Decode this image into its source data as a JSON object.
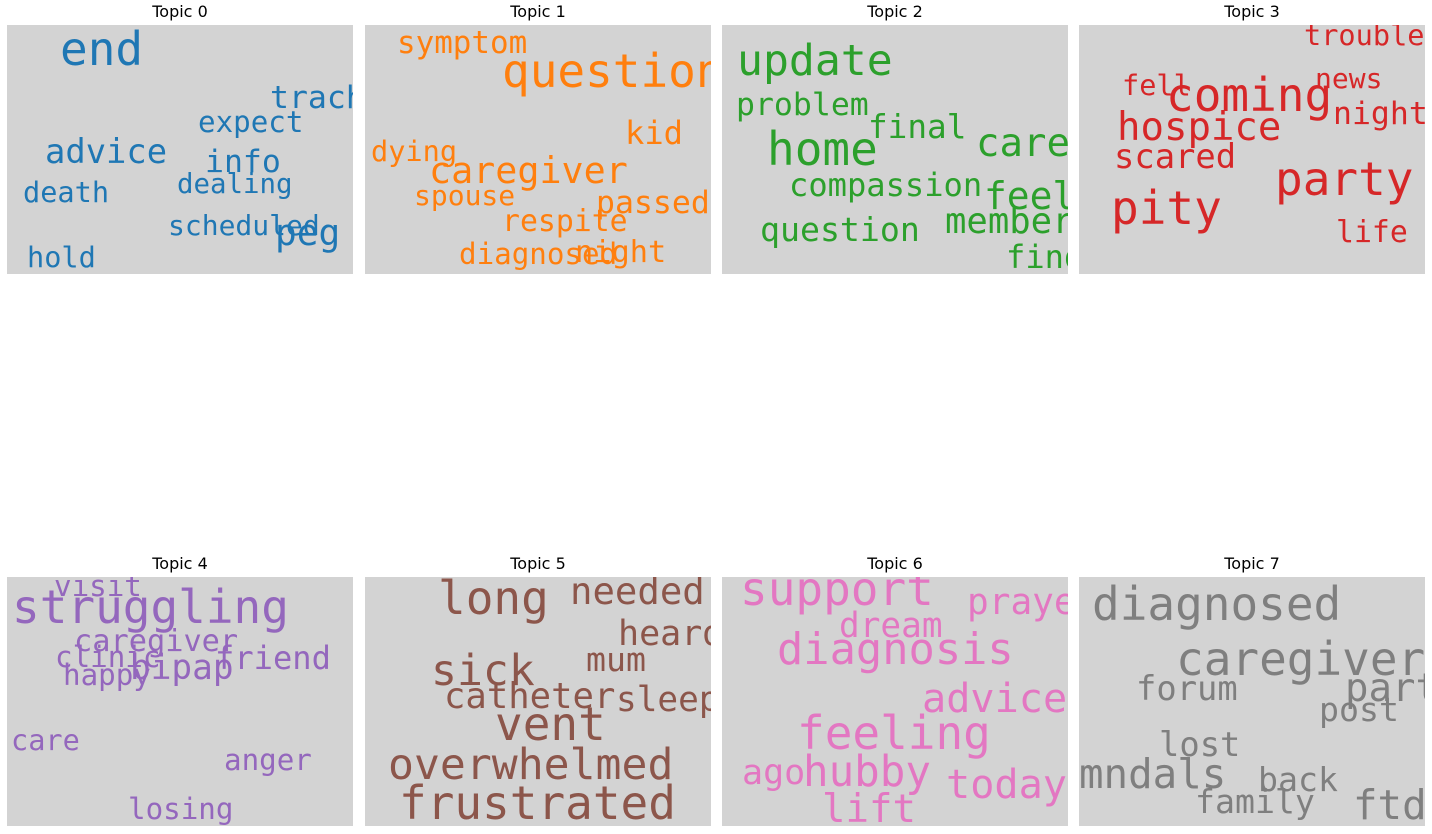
{
  "chart_data": {
    "type": "wordcloud",
    "background_color": "#d3d3d3",
    "panels": [
      {
        "title": "Topic 0",
        "color": "#1f77b4",
        "words": [
          {
            "text": "end",
            "weight": 1.0
          },
          {
            "text": "advice",
            "weight": 0.58
          },
          {
            "text": "trach",
            "weight": 0.5
          },
          {
            "text": "peg",
            "weight": 0.66
          },
          {
            "text": "info",
            "weight": 0.5
          },
          {
            "text": "expect",
            "weight": 0.42
          },
          {
            "text": "dealing",
            "weight": 0.36
          },
          {
            "text": "death",
            "weight": 0.4
          },
          {
            "text": "scheduled",
            "weight": 0.38
          },
          {
            "text": "hold",
            "weight": 0.4
          }
        ]
      },
      {
        "title": "Topic 1",
        "color": "#ff7f0e",
        "words": [
          {
            "text": "question",
            "weight": 1.0
          },
          {
            "text": "symptom",
            "weight": 0.48
          },
          {
            "text": "caregiver",
            "weight": 0.68
          },
          {
            "text": "kid",
            "weight": 0.52
          },
          {
            "text": "passed",
            "weight": 0.5
          },
          {
            "text": "dying",
            "weight": 0.4
          },
          {
            "text": "spouse",
            "weight": 0.38
          },
          {
            "text": "respite",
            "weight": 0.44
          },
          {
            "text": "diagnosed",
            "weight": 0.42
          },
          {
            "text": "night",
            "weight": 0.46
          }
        ]
      },
      {
        "title": "Topic 2",
        "color": "#2ca02c",
        "words": [
          {
            "text": "update",
            "weight": 0.9
          },
          {
            "text": "home",
            "weight": 1.0
          },
          {
            "text": "care",
            "weight": 0.76
          },
          {
            "text": "problem",
            "weight": 0.5
          },
          {
            "text": "final",
            "weight": 0.54
          },
          {
            "text": "compassion",
            "weight": 0.52
          },
          {
            "text": "feel",
            "weight": 0.72
          },
          {
            "text": "member",
            "weight": 0.64
          },
          {
            "text": "question",
            "weight": 0.56
          },
          {
            "text": "find",
            "weight": 0.52
          }
        ]
      },
      {
        "title": "Topic 3",
        "color": "#d62728",
        "words": [
          {
            "text": "coming",
            "weight": 1.0
          },
          {
            "text": "party",
            "weight": 1.0
          },
          {
            "text": "pity",
            "weight": 1.0
          },
          {
            "text": "hospice",
            "weight": 0.76
          },
          {
            "text": "scared",
            "weight": 0.58
          },
          {
            "text": "night",
            "weight": 0.5
          },
          {
            "text": "trouble",
            "weight": 0.4
          },
          {
            "text": "news",
            "weight": 0.38
          },
          {
            "text": "fell",
            "weight": 0.4
          },
          {
            "text": "life",
            "weight": 0.44
          }
        ]
      },
      {
        "title": "Topic 4",
        "color": "#9467bd",
        "words": [
          {
            "text": "struggling",
            "weight": 1.0
          },
          {
            "text": "bipap",
            "weight": 0.6
          },
          {
            "text": "friend",
            "weight": 0.52
          },
          {
            "text": "caregiver",
            "weight": 0.46
          },
          {
            "text": "clinic",
            "weight": 0.42
          },
          {
            "text": "happy",
            "weight": 0.42
          },
          {
            "text": "visit",
            "weight": 0.42
          },
          {
            "text": "care",
            "weight": 0.4
          },
          {
            "text": "anger",
            "weight": 0.42
          },
          {
            "text": "losing",
            "weight": 0.42
          }
        ]
      },
      {
        "title": "Topic 5",
        "color": "#8c564b",
        "words": [
          {
            "text": "long",
            "weight": 1.0
          },
          {
            "text": "needed",
            "weight": 0.7
          },
          {
            "text": "heard",
            "weight": 0.62
          },
          {
            "text": "sick",
            "weight": 0.9
          },
          {
            "text": "mum",
            "weight": 0.56
          },
          {
            "text": "catheter",
            "weight": 0.64
          },
          {
            "text": "sleep",
            "weight": 0.6
          },
          {
            "text": "vent",
            "weight": 1.0
          },
          {
            "text": "overwhelmed",
            "weight": 0.9
          },
          {
            "text": "frustrated",
            "weight": 1.0
          }
        ]
      },
      {
        "title": "Topic 6",
        "color": "#e377c2",
        "words": [
          {
            "text": "support",
            "weight": 1.0
          },
          {
            "text": "prayer",
            "weight": 0.66
          },
          {
            "text": "dream",
            "weight": 0.6
          },
          {
            "text": "diagnosis",
            "weight": 0.92
          },
          {
            "text": "advice",
            "weight": 0.8
          },
          {
            "text": "feeling",
            "weight": 1.0
          },
          {
            "text": "ago",
            "weight": 0.62
          },
          {
            "text": "hubby",
            "weight": 0.88
          },
          {
            "text": "today",
            "weight": 0.8
          },
          {
            "text": "lift",
            "weight": 0.76
          }
        ]
      },
      {
        "title": "Topic 7",
        "color": "#7f7f7f",
        "words": [
          {
            "text": "diagnosed",
            "weight": 1.0
          },
          {
            "text": "caregiver",
            "weight": 1.0
          },
          {
            "text": "part",
            "weight": 0.76
          },
          {
            "text": "forum",
            "weight": 0.58
          },
          {
            "text": "post",
            "weight": 0.56
          },
          {
            "text": "lost",
            "weight": 0.58
          },
          {
            "text": "mndals",
            "weight": 0.82
          },
          {
            "text": "back",
            "weight": 0.56
          },
          {
            "text": "family",
            "weight": 0.56
          },
          {
            "text": "ftd",
            "weight": 0.82
          }
        ]
      }
    ]
  }
}
